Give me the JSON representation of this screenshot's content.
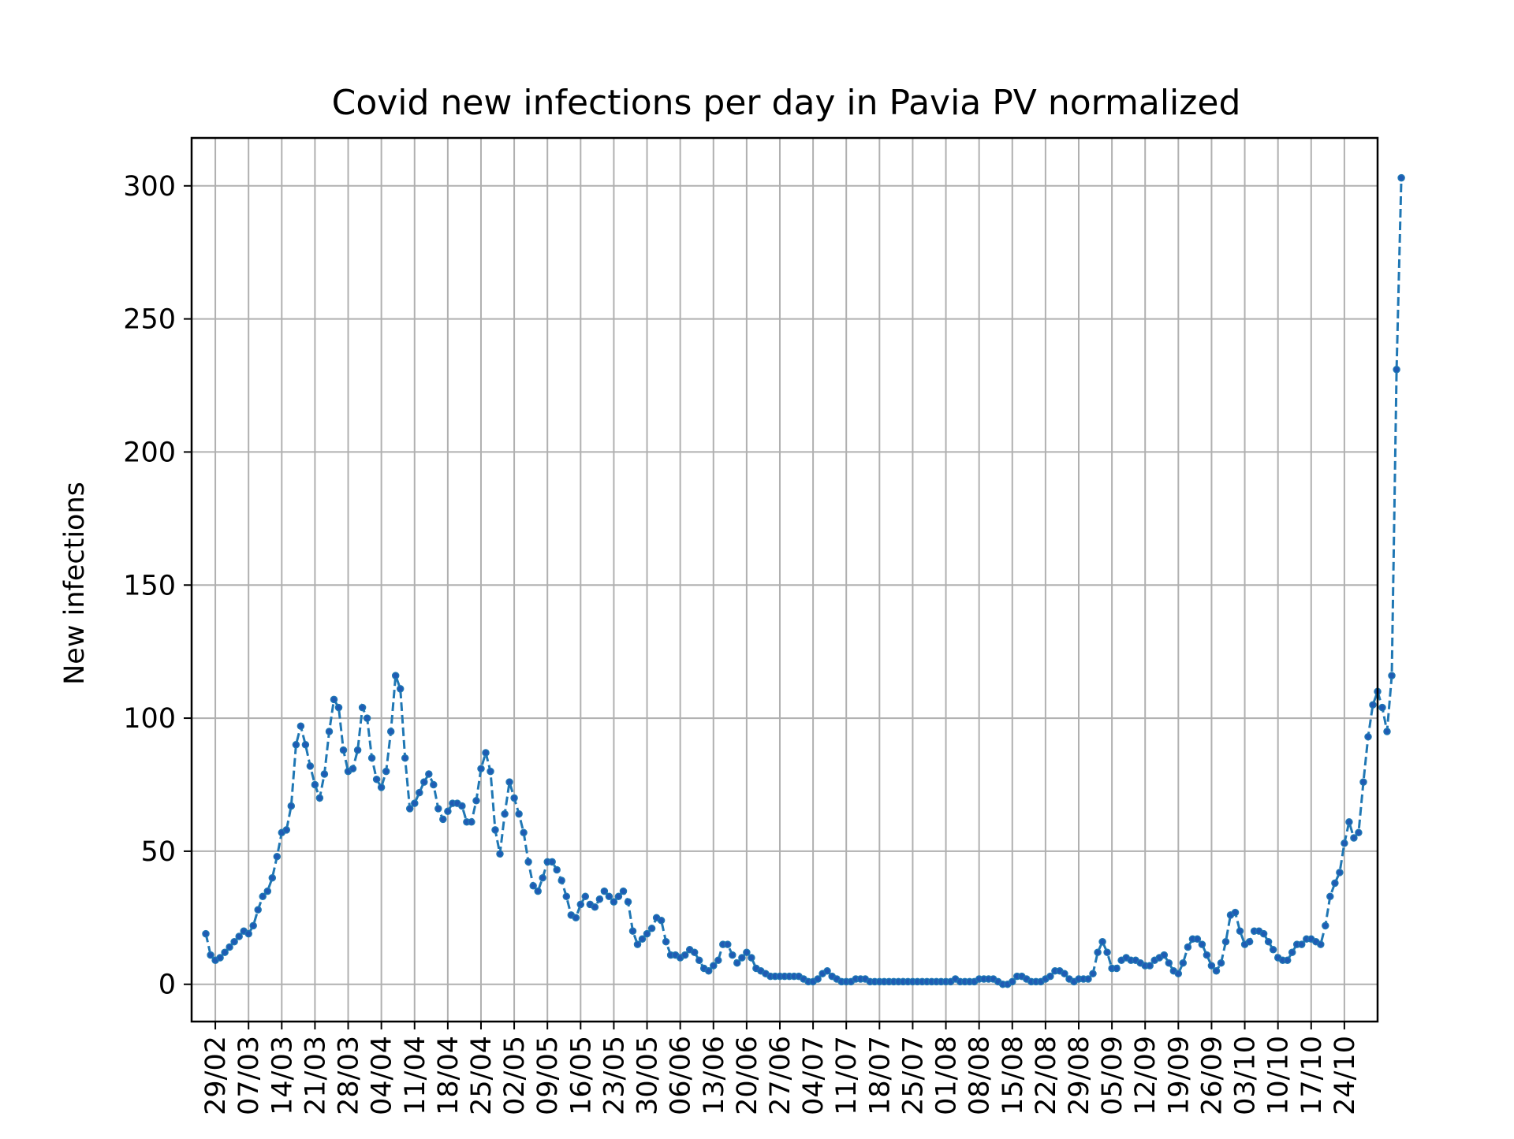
{
  "chart_data": {
    "type": "line",
    "title": "Covid new infections per day in Pavia PV normalized",
    "xlabel": "",
    "ylabel": "New infections",
    "ylim": [
      -14,
      318
    ],
    "xlim": [
      "2020-02-24",
      "2020-10-31"
    ],
    "yticks": [
      0,
      50,
      100,
      150,
      200,
      250,
      300
    ],
    "xtick_dates": [
      "2020-02-29",
      "2020-03-07",
      "2020-03-14",
      "2020-03-21",
      "2020-03-28",
      "2020-04-04",
      "2020-04-11",
      "2020-04-18",
      "2020-04-25",
      "2020-05-02",
      "2020-05-09",
      "2020-05-16",
      "2020-05-23",
      "2020-05-30",
      "2020-06-06",
      "2020-06-13",
      "2020-06-20",
      "2020-06-27",
      "2020-07-04",
      "2020-07-11",
      "2020-07-18",
      "2020-07-25",
      "2020-08-01",
      "2020-08-08",
      "2020-08-15",
      "2020-08-22",
      "2020-08-29",
      "2020-09-05",
      "2020-09-12",
      "2020-09-19",
      "2020-09-26",
      "2020-10-03",
      "2020-10-10",
      "2020-10-17",
      "2020-10-24"
    ],
    "xtick_labels": [
      "29/02",
      "07/03",
      "14/03",
      "21/03",
      "28/03",
      "04/04",
      "11/04",
      "18/04",
      "25/04",
      "02/05",
      "09/05",
      "16/05",
      "23/05",
      "30/05",
      "06/06",
      "13/06",
      "20/06",
      "27/06",
      "04/07",
      "11/07",
      "18/07",
      "25/07",
      "01/08",
      "08/08",
      "15/08",
      "22/08",
      "29/08",
      "05/09",
      "12/09",
      "19/09",
      "26/09",
      "03/10",
      "10/10",
      "17/10",
      "24/10"
    ],
    "grid": true,
    "line_style": "dashed",
    "marker": "dot",
    "series": [
      {
        "start_date": "2020-02-27",
        "values": [
          19,
          11,
          9,
          10,
          12,
          14,
          16,
          18,
          20,
          19,
          22,
          28,
          33,
          35,
          40,
          48,
          57,
          58,
          67,
          90,
          97,
          90,
          82,
          75,
          70,
          79,
          95,
          107,
          104,
          88,
          80,
          81,
          88,
          104,
          100,
          85,
          77,
          74,
          80,
          95,
          116,
          111,
          85,
          66,
          68,
          72,
          76,
          79,
          75,
          66,
          62,
          65,
          68,
          68,
          67,
          61,
          61,
          69,
          81,
          87,
          80,
          58,
          49,
          64,
          76,
          70,
          64,
          57,
          46,
          37,
          35,
          40,
          46,
          46,
          43,
          39,
          33,
          26,
          25,
          30,
          33,
          30,
          29,
          32,
          35,
          33,
          31,
          33,
          35,
          31,
          20,
          15,
          17,
          19,
          21,
          25,
          24,
          16,
          11,
          11,
          10,
          11,
          13,
          12,
          9,
          6,
          5,
          7,
          9,
          15,
          15,
          11,
          8,
          10,
          12,
          10,
          6,
          5,
          4,
          3,
          3,
          3,
          3,
          3,
          3,
          3,
          2,
          1,
          1,
          2,
          4,
          5,
          3,
          2,
          1,
          1,
          1,
          2,
          2,
          2,
          1,
          1,
          1,
          1,
          1,
          1,
          1,
          1,
          1,
          1,
          1,
          1,
          1,
          1,
          1,
          1,
          1,
          1,
          2,
          1,
          1,
          1,
          1,
          2,
          2,
          2,
          2,
          1,
          0,
          0,
          1,
          3,
          3,
          2,
          1,
          1,
          1,
          2,
          3,
          5,
          5,
          4,
          2,
          1,
          2,
          2,
          2,
          4,
          12,
          16,
          12,
          6,
          6,
          9,
          10,
          9,
          9,
          8,
          7,
          7,
          9,
          10,
          11,
          8,
          5,
          4,
          8,
          14,
          17,
          17,
          15,
          11,
          7,
          5,
          8,
          16,
          26,
          27,
          20,
          15,
          16,
          20,
          20,
          19,
          16,
          13,
          10,
          9,
          9,
          12,
          15,
          15,
          17,
          17,
          16,
          15,
          22,
          33,
          38,
          42,
          53,
          61,
          55,
          57,
          76,
          93,
          105,
          110,
          104,
          95,
          116,
          231,
          303
        ]
      }
    ]
  }
}
